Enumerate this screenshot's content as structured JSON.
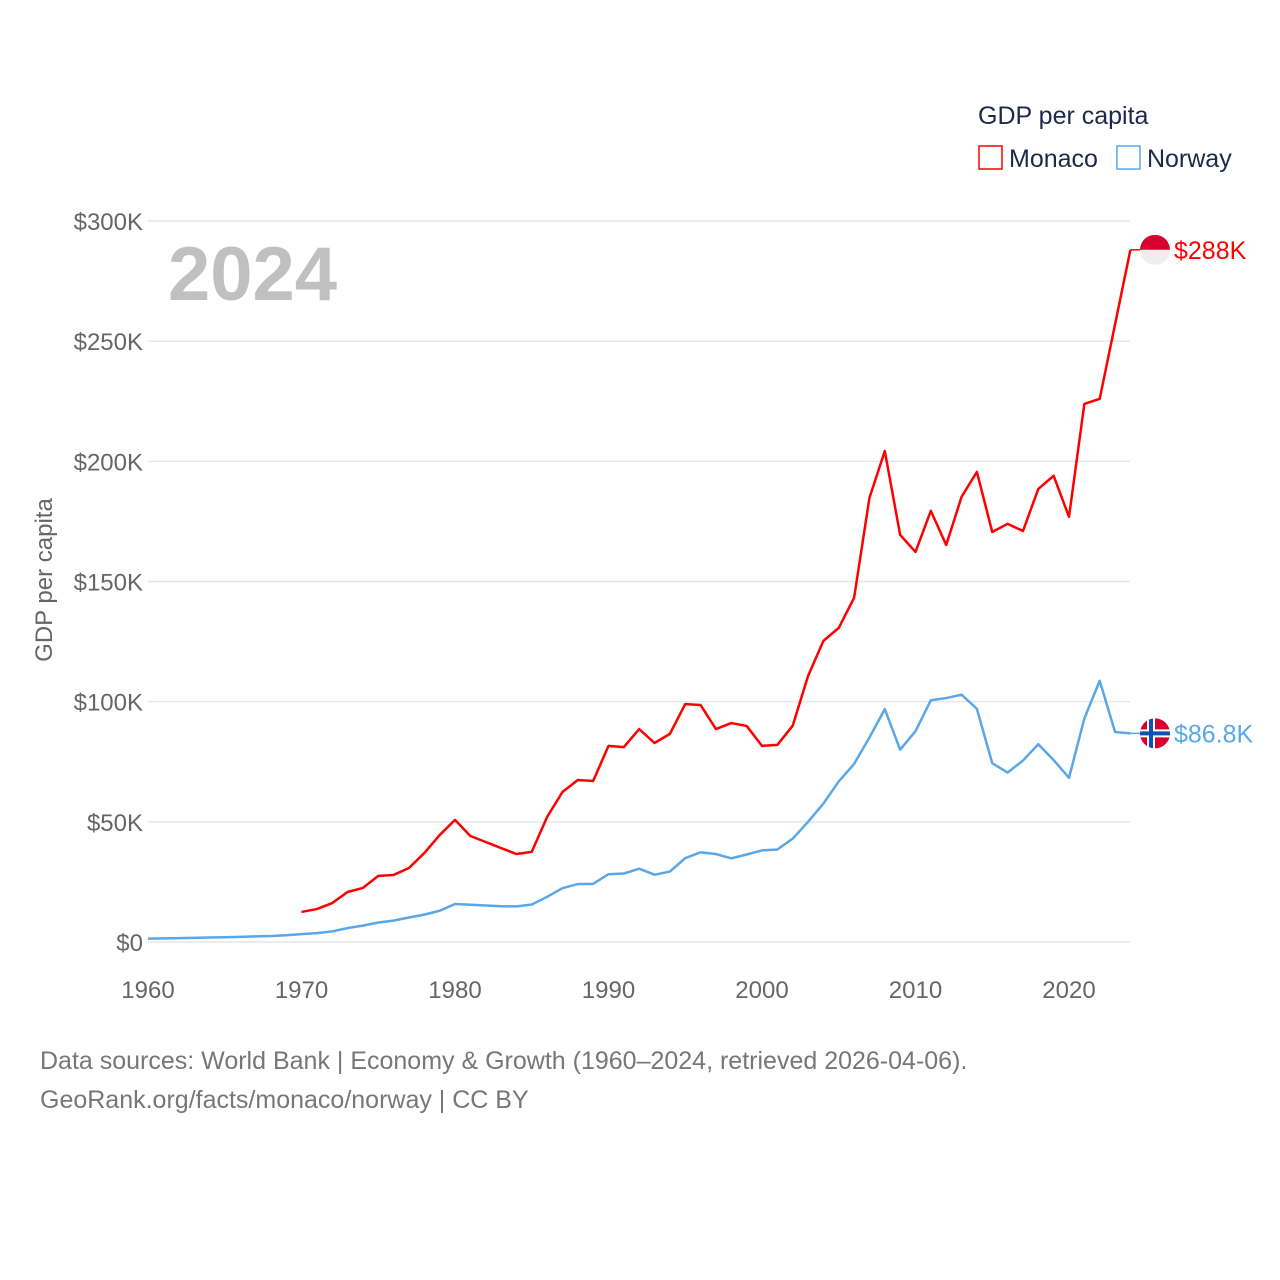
{
  "chart_data": {
    "type": "line",
    "title": "",
    "year_label": "2024",
    "ylabel": "GDP per capita",
    "xlabel": "",
    "xlim": [
      1960,
      2024
    ],
    "ylim": [
      0,
      300000
    ],
    "x_ticks": [
      1960,
      1970,
      1980,
      1990,
      2000,
      2010,
      2020
    ],
    "x_tick_labels": [
      "1960",
      "1970",
      "1980",
      "1990",
      "2000",
      "2010",
      "2020"
    ],
    "y_ticks": [
      0,
      50000,
      100000,
      150000,
      200000,
      250000,
      300000
    ],
    "y_tick_labels": [
      "$0",
      "$50K",
      "$100K",
      "$150K",
      "$200K",
      "$250K",
      "$300K"
    ],
    "grid": true,
    "legend": {
      "title": "GDP per capita",
      "placement": "top-right"
    },
    "series": [
      {
        "name": "Monaco",
        "color": "#ff0000",
        "end_label": "$288K",
        "flag": "monaco-flag",
        "start_year": 1970,
        "values": [
          12500,
          13700,
          16200,
          20800,
          22500,
          27500,
          27900,
          30800,
          37000,
          44500,
          50800,
          44100,
          41600,
          39100,
          36600,
          37500,
          52000,
          62400,
          67400,
          67000,
          81600,
          81100,
          88600,
          82800,
          86600,
          99000,
          98600,
          88600,
          91100,
          89900,
          81600,
          82000,
          90000,
          110700,
          125300,
          130700,
          143200,
          184800,
          204300,
          169400,
          162300,
          179400,
          165200,
          185200,
          195600,
          170600,
          174000,
          171000,
          188500,
          194000,
          176900,
          223900,
          226000,
          257000,
          288000
        ]
      },
      {
        "name": "Norway",
        "color": "#5aa7e8",
        "end_label": "$86.8K",
        "flag": "norway-flag",
        "start_year": 1960,
        "values": [
          1400,
          1500,
          1600,
          1700,
          1850,
          2000,
          2150,
          2350,
          2500,
          2800,
          3300,
          3700,
          4400,
          5800,
          6800,
          8100,
          8900,
          10200,
          11400,
          13000,
          15800,
          15500,
          15200,
          14900,
          14800,
          15600,
          18800,
          22400,
          24100,
          24200,
          28200,
          28500,
          30500,
          28000,
          29300,
          34900,
          37300,
          36600,
          34800,
          36400,
          38100,
          38500,
          43000,
          50000,
          57600,
          66800,
          74100,
          85100,
          96900,
          80000,
          87700,
          100600,
          101500,
          102900,
          97000,
          74400,
          70500,
          75500,
          82300,
          75700,
          68300,
          93000,
          108700,
          87400,
          86800
        ]
      }
    ]
  },
  "footer": {
    "line1": "Data sources: World Bank | Economy & Growth (1960–2024, retrieved 2026-04-06).",
    "line2": "GeoRank.org/facts/monaco/norway | CC BY"
  }
}
